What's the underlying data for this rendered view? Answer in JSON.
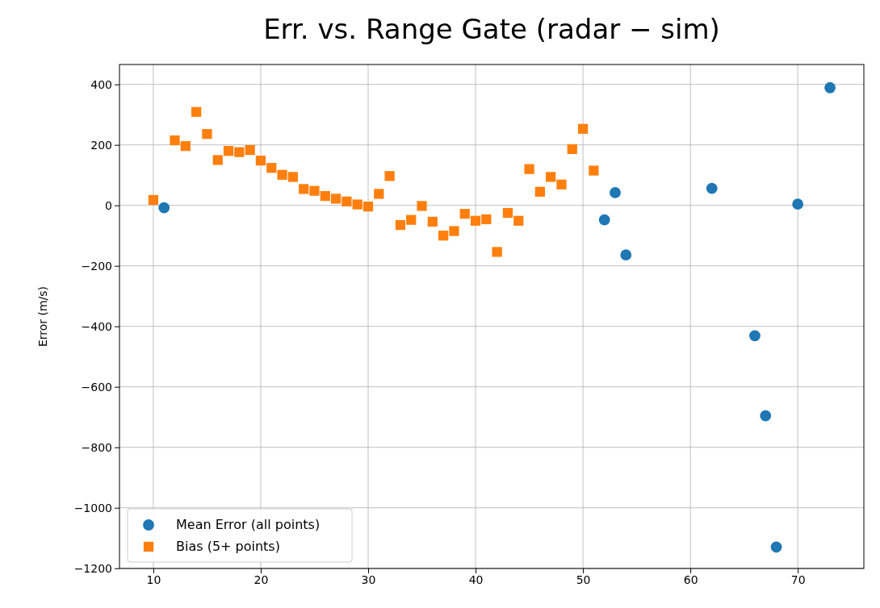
{
  "chart_data": {
    "type": "scatter",
    "title": "Err. vs. Range Gate (radar − sim)",
    "ylabel": "Error (m/s)",
    "xlim": [
      6.85,
      76.15
    ],
    "xticks": [
      10,
      20,
      30,
      40,
      50,
      60,
      70
    ],
    "ylim": [
      -1200.75,
      465.75
    ],
    "yticks": [
      {
        "value": -1200,
        "label": "−1200"
      },
      {
        "value": -1000,
        "label": "−1000"
      },
      {
        "value": -800,
        "label": "−800"
      },
      {
        "value": -600,
        "label": "−600"
      },
      {
        "value": -400,
        "label": "−400"
      },
      {
        "value": -200,
        "label": "−200"
      },
      0,
      200,
      400
    ],
    "grid": true,
    "legend": "bottom left",
    "series": [
      {
        "name": "Mean Error (all points)",
        "color": "#1f77b4",
        "marker": "circle",
        "x": [
          11,
          52,
          53,
          54,
          62,
          66,
          67,
          68,
          70,
          73
        ],
        "values": [
          -8,
          -48,
          42,
          -164,
          56,
          -431,
          -696,
          -1130,
          4,
          389
        ]
      },
      {
        "name": "Bias (5+ points)",
        "color": "#ff7f0e",
        "marker": "square",
        "x": [
          10,
          12,
          13,
          14,
          15,
          16,
          17,
          18,
          19,
          20,
          21,
          22,
          23,
          24,
          25,
          26,
          27,
          28,
          29,
          30,
          31,
          32,
          33,
          34,
          35,
          36,
          37,
          38,
          39,
          40,
          41,
          42,
          43,
          44,
          45,
          46,
          47,
          48,
          49,
          50,
          51
        ],
        "values": [
          18,
          215,
          196,
          309,
          236,
          150,
          180,
          176,
          183,
          148,
          124,
          101,
          94,
          54,
          48,
          31,
          22,
          13,
          3,
          -4,
          38,
          97,
          -65,
          -48,
          -2,
          -54,
          -100,
          -85,
          -28,
          -51,
          -46,
          -154,
          -25,
          -51,
          120,
          45,
          94,
          69,
          186,
          253,
          115
        ]
      }
    ]
  }
}
